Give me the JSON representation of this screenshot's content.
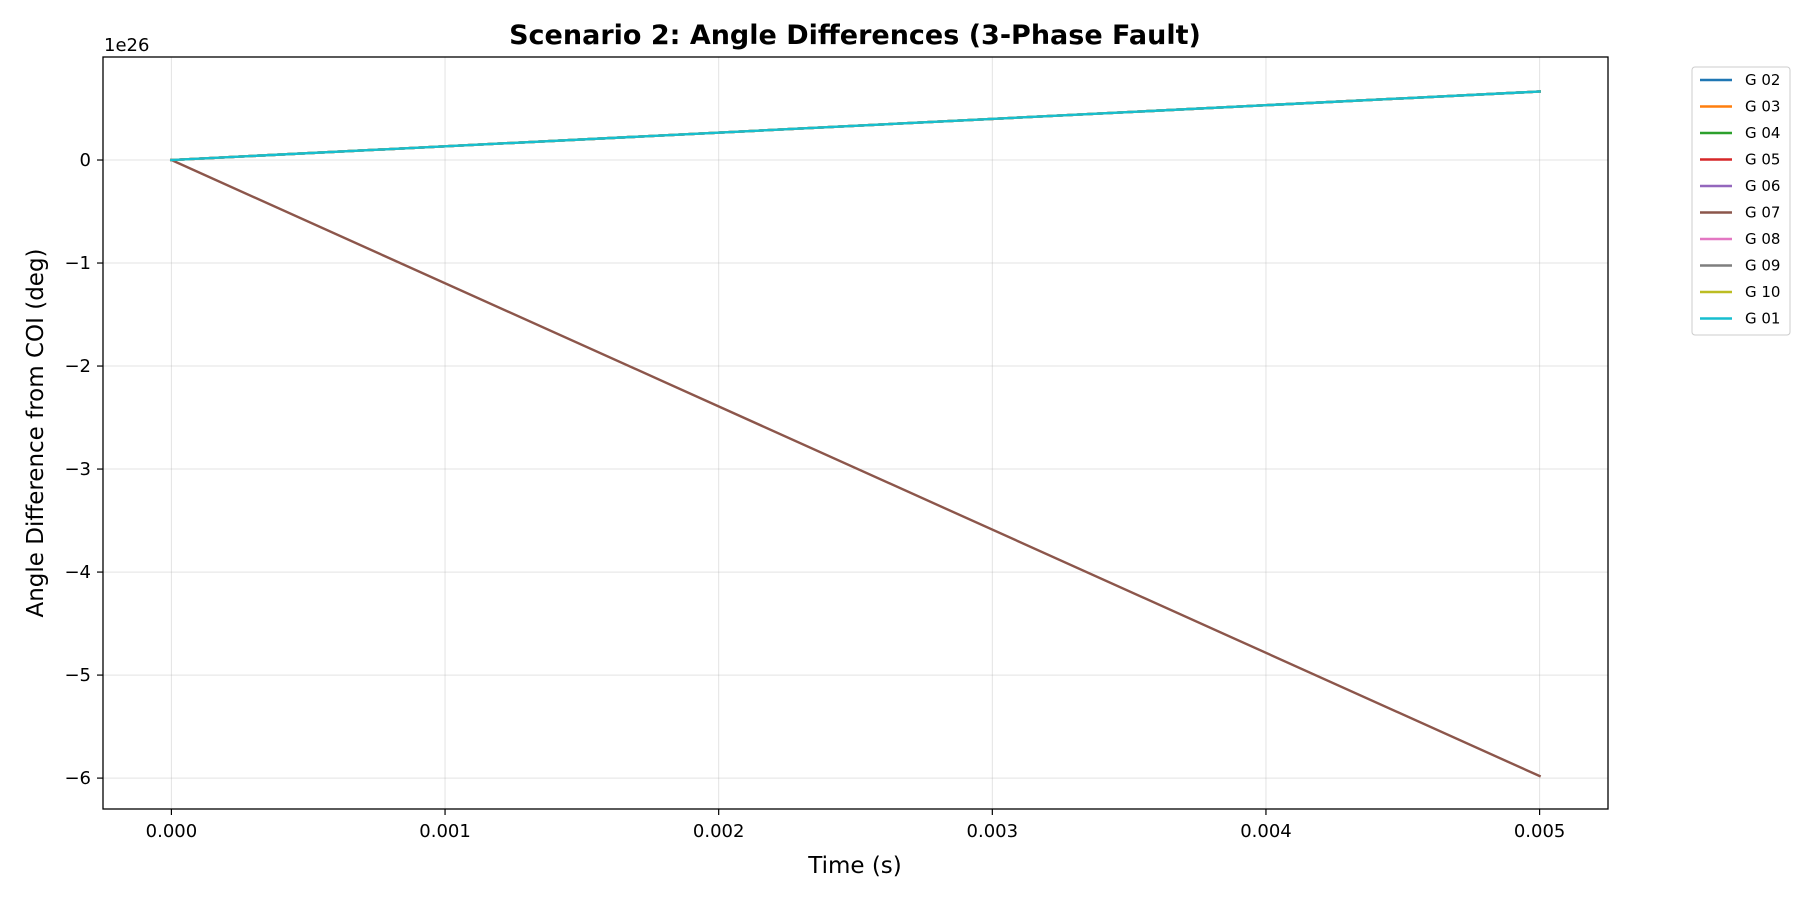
{
  "chart_data": {
    "type": "line",
    "title": "Scenario 2: Angle Differences (3-Phase Fault)",
    "xlabel": "Time (s)",
    "ylabel": "Angle Difference from COI (deg)",
    "y_offset_label": "1e26",
    "y_scale_factor": 1e+26,
    "xlim": [
      -0.00025,
      0.00525
    ],
    "ylim": [
      -6.3,
      1.0
    ],
    "x_ticks": [
      0.0,
      0.001,
      0.002,
      0.003,
      0.004,
      0.005
    ],
    "x_tick_labels": [
      "0.000",
      "0.001",
      "0.002",
      "0.003",
      "0.004",
      "0.005"
    ],
    "y_ticks": [
      0,
      -1,
      -2,
      -3,
      -4,
      -5,
      -6
    ],
    "y_tick_labels": [
      "0",
      "−1",
      "−2",
      "−3",
      "−4",
      "−5",
      "−6"
    ],
    "grid": true,
    "legend_position": "outside-top-right",
    "x": [
      0.0,
      0.005
    ],
    "series": [
      {
        "name": "G 02",
        "color": "#1f77b4",
        "values": [
          0,
          0.665
        ]
      },
      {
        "name": "G 03",
        "color": "#ff7f0e",
        "values": [
          0,
          0.665
        ]
      },
      {
        "name": "G 04",
        "color": "#2ca02c",
        "values": [
          0,
          0.665
        ]
      },
      {
        "name": "G 05",
        "color": "#d62728",
        "values": [
          0,
          0.665
        ]
      },
      {
        "name": "G 06",
        "color": "#9467bd",
        "values": [
          0,
          0.665
        ]
      },
      {
        "name": "G 07",
        "color": "#8c564b",
        "values": [
          0,
          -5.98
        ]
      },
      {
        "name": "G 08",
        "color": "#e377c2",
        "values": [
          0,
          0.665
        ]
      },
      {
        "name": "G 09",
        "color": "#7f7f7f",
        "values": [
          0,
          0.665
        ]
      },
      {
        "name": "G 10",
        "color": "#bcbd22",
        "values": [
          0,
          0.665
        ]
      },
      {
        "name": "G 01",
        "color": "#17becf",
        "values": [
          0,
          0.665
        ]
      }
    ]
  }
}
